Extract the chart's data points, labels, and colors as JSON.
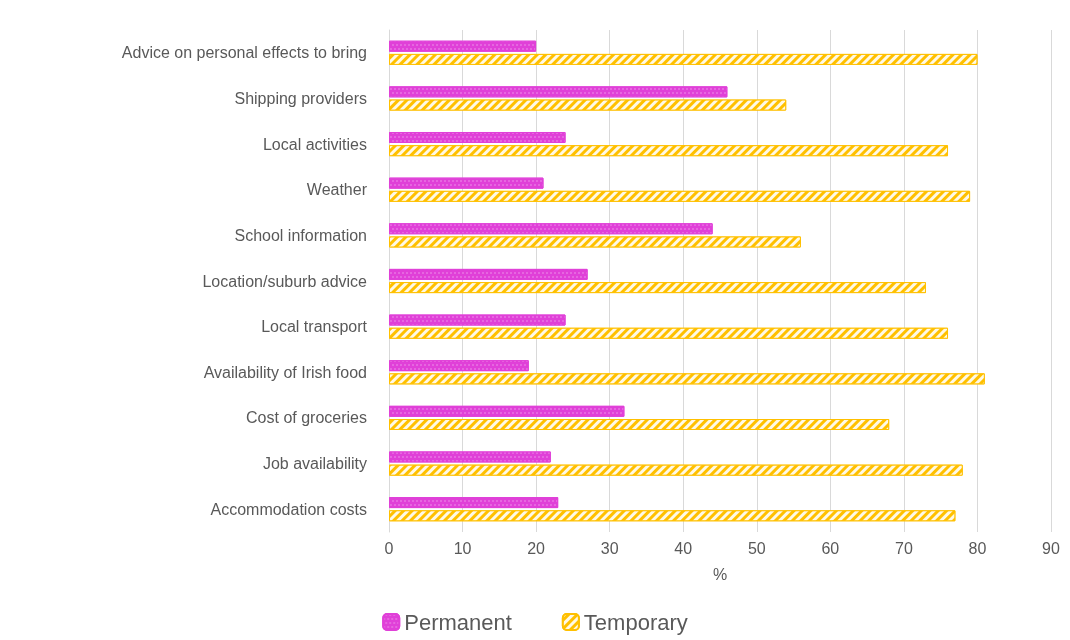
{
  "chart_data": {
    "type": "bar",
    "orientation": "horizontal",
    "xlabel": "%",
    "categories": [
      "Advice on personal effects to bring",
      "Shipping providers",
      "Local activities",
      "Weather",
      "School information",
      "Location/suburb advice",
      "Local transport",
      "Availability of Irish food",
      "Cost of groceries",
      "Job availability",
      "Accommodation costs"
    ],
    "series": [
      {
        "name": "Permanent",
        "color": "#e040d8",
        "values": [
          20,
          46,
          24,
          21,
          44,
          27,
          24,
          19,
          32,
          22,
          23
        ]
      },
      {
        "name": "Temporary",
        "color": "#ffc000",
        "values": [
          80,
          54,
          76,
          79,
          56,
          73,
          76,
          81,
          68,
          78,
          77
        ]
      }
    ],
    "xlim": [
      0,
      90
    ],
    "xticks": [
      0,
      10,
      20,
      30,
      40,
      50,
      60,
      70,
      80,
      90
    ],
    "grid": "x",
    "legend": "bottom"
  }
}
